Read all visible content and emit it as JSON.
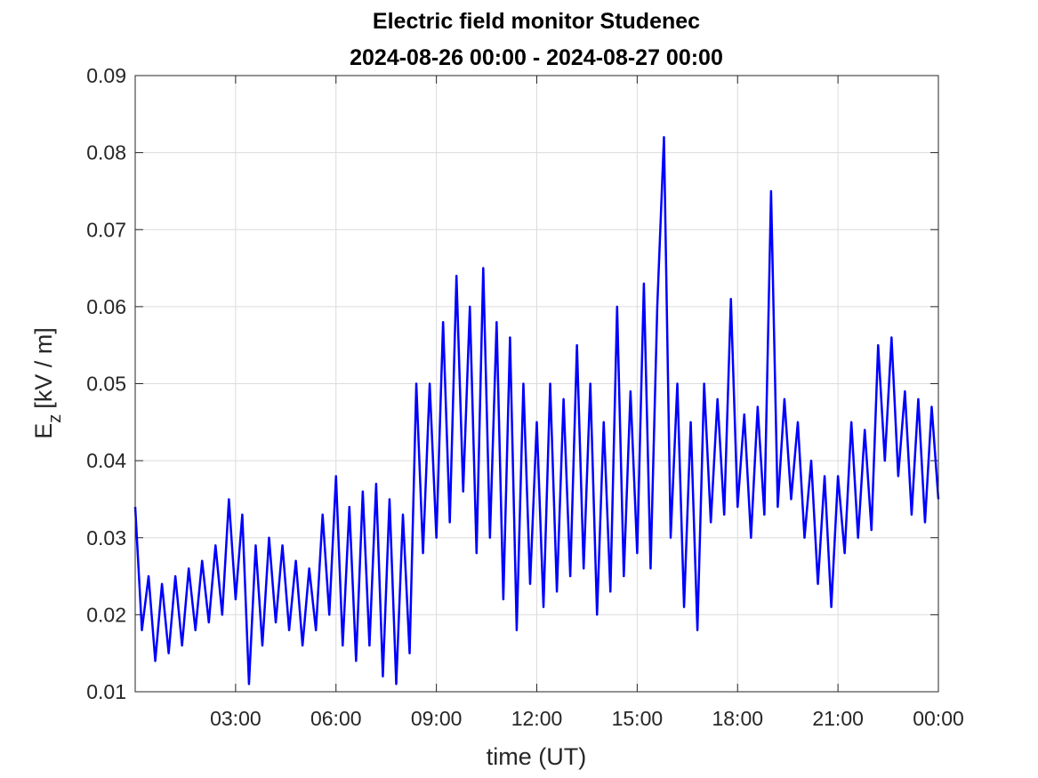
{
  "chart_data": {
    "type": "line",
    "title": "Electric field monitor Studenec",
    "subtitle": "2024-08-26 00:00 - 2024-08-27 00:00",
    "xlabel": "time (UT)",
    "ylabel": "E",
    "ylabel_subscript": "z",
    "ylabel_unit": "[kV / m]",
    "x": [
      0,
      0.2,
      0.4,
      0.6,
      0.8,
      1,
      1.2,
      1.4,
      1.6,
      1.8,
      2,
      2.2,
      2.4,
      2.6,
      2.8,
      3,
      3.2,
      3.4,
      3.6,
      3.8,
      4,
      4.2,
      4.4,
      4.6,
      4.8,
      5,
      5.2,
      5.4,
      5.6,
      5.8,
      6,
      6.2,
      6.4,
      6.6,
      6.8,
      7,
      7.2,
      7.4,
      7.6,
      7.8,
      8,
      8.2,
      8.4,
      8.6,
      8.8,
      9,
      9.2,
      9.4,
      9.6,
      9.8,
      10,
      10.2,
      10.4,
      10.6,
      10.8,
      11,
      11.2,
      11.4,
      11.6,
      11.8,
      12,
      12.2,
      12.4,
      12.6,
      12.8,
      13,
      13.2,
      13.4,
      13.6,
      13.8,
      14,
      14.2,
      14.4,
      14.6,
      14.8,
      15,
      15.2,
      15.4,
      15.6,
      15.8,
      16,
      16.2,
      16.4,
      16.6,
      16.8,
      17,
      17.2,
      17.4,
      17.6,
      17.8,
      18,
      18.2,
      18.4,
      18.6,
      18.8,
      19,
      19.2,
      19.4,
      19.6,
      19.8,
      20,
      20.2,
      20.4,
      20.6,
      20.8,
      21,
      21.2,
      21.4,
      21.6,
      21.8,
      22,
      22.2,
      22.4,
      22.6,
      22.8,
      23,
      23.2,
      23.4,
      23.6,
      23.8,
      24
    ],
    "series": [
      {
        "color": "#0000ff",
        "values": [
          0.034,
          0.018,
          0.025,
          0.014,
          0.024,
          0.015,
          0.025,
          0.016,
          0.026,
          0.018,
          0.027,
          0.019,
          0.029,
          0.02,
          0.035,
          0.022,
          0.033,
          0.011,
          0.029,
          0.016,
          0.03,
          0.019,
          0.029,
          0.018,
          0.027,
          0.016,
          0.026,
          0.018,
          0.033,
          0.02,
          0.038,
          0.016,
          0.034,
          0.014,
          0.036,
          0.016,
          0.037,
          0.012,
          0.035,
          0.011,
          0.033,
          0.015,
          0.05,
          0.028,
          0.05,
          0.03,
          0.058,
          0.032,
          0.064,
          0.036,
          0.06,
          0.028,
          0.065,
          0.03,
          0.058,
          0.022,
          0.056,
          0.018,
          0.05,
          0.024,
          0.045,
          0.021,
          0.05,
          0.023,
          0.048,
          0.025,
          0.055,
          0.026,
          0.05,
          0.02,
          0.045,
          0.023,
          0.06,
          0.025,
          0.049,
          0.028,
          0.063,
          0.026,
          0.06,
          0.082,
          0.03,
          0.05,
          0.021,
          0.045,
          0.018,
          0.05,
          0.032,
          0.048,
          0.033,
          0.061,
          0.034,
          0.046,
          0.03,
          0.047,
          0.033,
          0.075,
          0.034,
          0.048,
          0.035,
          0.045,
          0.03,
          0.04,
          0.024,
          0.038,
          0.021,
          0.038,
          0.028,
          0.045,
          0.03,
          0.044,
          0.031,
          0.055,
          0.04,
          0.056,
          0.038,
          0.049,
          0.033,
          0.048,
          0.032,
          0.047,
          0.035
        ]
      }
    ],
    "xlim": [
      0,
      24
    ],
    "xticks": [
      {
        "value": 3,
        "label": "03:00"
      },
      {
        "value": 6,
        "label": "06:00"
      },
      {
        "value": 9,
        "label": "09:00"
      },
      {
        "value": 12,
        "label": "12:00"
      },
      {
        "value": 15,
        "label": "15:00"
      },
      {
        "value": 18,
        "label": "18:00"
      },
      {
        "value": 21,
        "label": "21:00"
      },
      {
        "value": 24,
        "label": "00:00"
      }
    ],
    "ylim": [
      0.01,
      0.09
    ],
    "yticks": [
      0.01,
      0.02,
      0.03,
      0.04,
      0.05,
      0.06,
      0.07,
      0.08,
      0.09
    ],
    "grid": true
  }
}
